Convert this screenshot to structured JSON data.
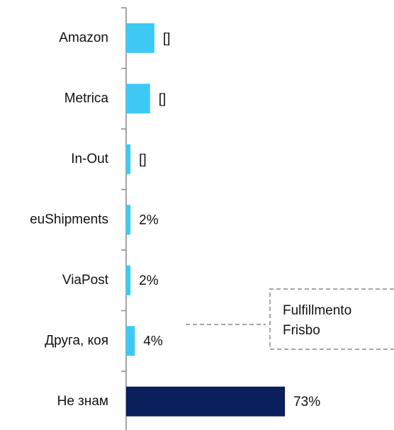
{
  "chart_data": {
    "type": "hbar",
    "categories": [
      "Amazon",
      "Metrica",
      "In-Out",
      "euShipments",
      "ViaPost",
      "Друга, коя",
      "Не знам"
    ],
    "values": [
      13,
      11,
      2,
      2,
      2,
      4,
      73
    ],
    "value_labels": [
      "[]",
      "[]",
      "[]",
      "2%",
      "2%",
      "4%",
      "73%"
    ],
    "colors": [
      "#3ec9f5",
      "#3ec9f5",
      "#3ec9f5",
      "#3ec9f5",
      "#3ec9f5",
      "#3ec9f5",
      "#0b1f5c"
    ],
    "xlim": [
      0,
      100
    ],
    "annotation": [
      "Fulfillmento",
      "Frisbo"
    ]
  }
}
